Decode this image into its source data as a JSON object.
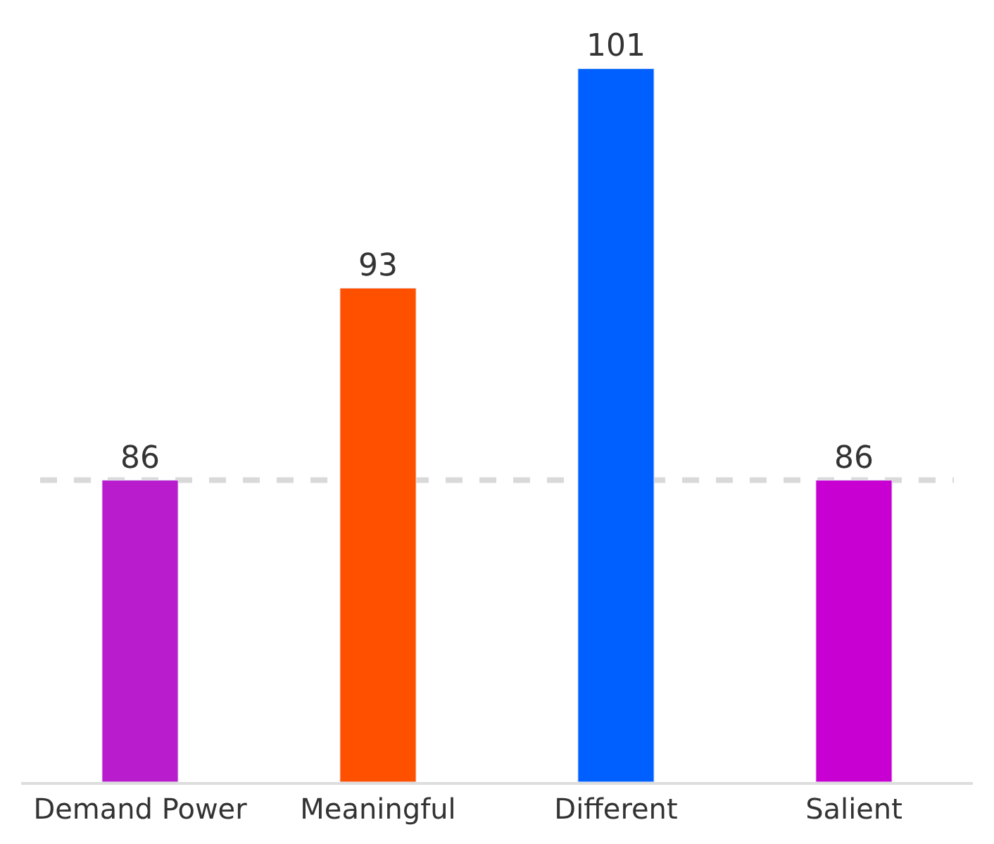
{
  "chart_data": {
    "type": "bar",
    "categories": [
      "Demand Power",
      "Meaningful",
      "Different",
      "Salient"
    ],
    "values": [
      86,
      93,
      101,
      86
    ],
    "colors": [
      "#b81ccc",
      "#ff5000",
      "#0060ff",
      "#c800d2"
    ],
    "ylim": [
      75,
      103.5
    ],
    "tick_labels": "x",
    "grid": false,
    "legend": false,
    "data_labels": true,
    "ref_lines": [
      {
        "axis": "y",
        "value": 86,
        "color": "#d9d9d9",
        "line_style": "dashed"
      }
    ]
  }
}
